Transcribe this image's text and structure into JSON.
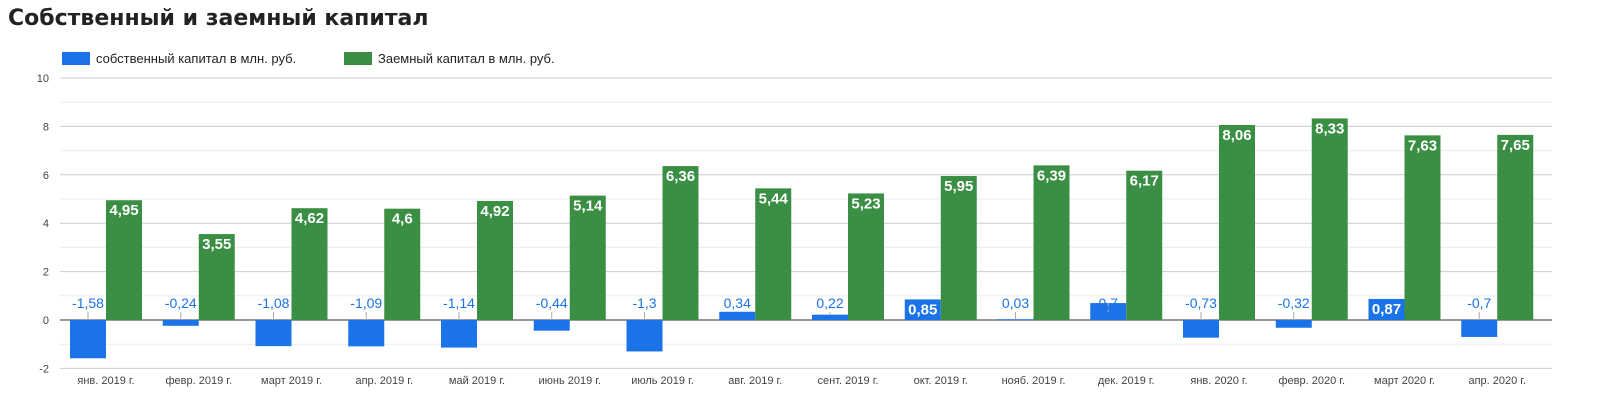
{
  "chart_data": {
    "type": "bar",
    "title": "Собственный и заемный капитал",
    "xlabel": "",
    "ylabel": "",
    "ylim": [
      -2,
      10
    ],
    "yticks": [
      -2,
      0,
      2,
      4,
      6,
      8,
      10
    ],
    "grid": true,
    "legend_position": "top-left",
    "categories": [
      "янв. 2019 г.",
      "февр. 2019 г.",
      "март 2019 г.",
      "апр. 2019 г.",
      "май 2019 г.",
      "июнь 2019 г.",
      "июль 2019 г.",
      "авг. 2019 г.",
      "сент. 2019 г.",
      "окт. 2019 г.",
      "нояб. 2019 г.",
      "дек. 2019 г.",
      "янв. 2020 г.",
      "февр. 2020 г.",
      "март 2020 г.",
      "апр. 2020 г."
    ],
    "series": [
      {
        "name": "собственный капитал в млн. руб.",
        "color": "#1a73e8",
        "values": [
          -1.58,
          -0.24,
          -1.08,
          -1.09,
          -1.14,
          -0.44,
          -1.3,
          0.34,
          0.22,
          0.85,
          0.03,
          0.7,
          -0.73,
          -0.32,
          0.87,
          -0.7
        ],
        "labels": [
          "-1,58",
          "-0,24",
          "-1,08",
          "-1,09",
          "-1,14",
          "-0,44",
          "-1,3",
          "0,34",
          "0,22",
          "0,85",
          "0,03",
          "0,7",
          "-0,73",
          "-0,32",
          "0,87",
          "-0,7"
        ]
      },
      {
        "name": "Заемный капитал в млн. руб.",
        "color": "#3a8f44",
        "values": [
          4.95,
          3.55,
          4.62,
          4.6,
          4.92,
          5.14,
          6.36,
          5.44,
          5.23,
          5.95,
          6.39,
          6.17,
          8.06,
          8.33,
          7.63,
          7.65
        ],
        "labels": [
          "4,95",
          "3,55",
          "4,62",
          "4,6",
          "4,92",
          "5,14",
          "6,36",
          "5,44",
          "5,23",
          "5,95",
          "6,39",
          "6,17",
          "8,06",
          "8,33",
          "7,63",
          "7,65"
        ]
      }
    ]
  }
}
